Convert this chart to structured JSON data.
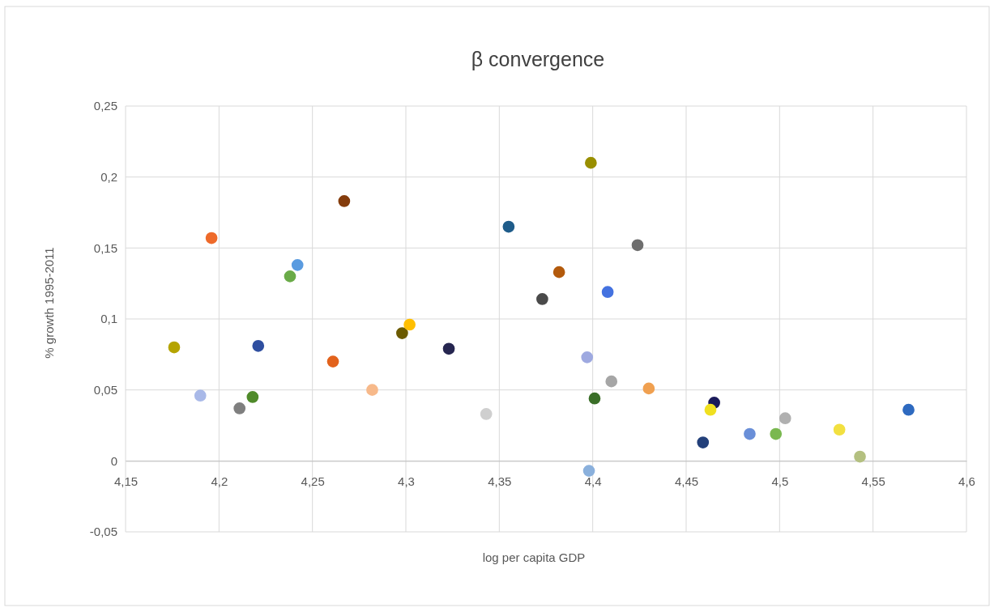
{
  "chart_data": {
    "type": "scatter",
    "title": "β convergence",
    "xlabel": "log per capita GDP",
    "ylabel": "% growth 1995-2011",
    "xlim": [
      4.15,
      4.6
    ],
    "xticks": [
      {
        "value": 4.15,
        "label": "4,15"
      },
      {
        "value": 4.2,
        "label": "4,2"
      },
      {
        "value": 4.25,
        "label": "4,25"
      },
      {
        "value": 4.3,
        "label": "4,3"
      },
      {
        "value": 4.35,
        "label": "4,35"
      },
      {
        "value": 4.4,
        "label": "4,4"
      },
      {
        "value": 4.45,
        "label": "4,45"
      },
      {
        "value": 4.5,
        "label": "4,5"
      },
      {
        "value": 4.55,
        "label": "4,55"
      },
      {
        "value": 4.6,
        "label": "4,6"
      }
    ],
    "ylim": [
      -0.05,
      0.25
    ],
    "yticks": [
      {
        "value": -0.05,
        "label": "-0,05"
      },
      0,
      {
        "value": 0.05,
        "label": "0,05"
      },
      {
        "value": 0.1,
        "label": "0,1"
      },
      {
        "value": 0.15,
        "label": "0,15"
      },
      {
        "value": 0.2,
        "label": "0,2"
      },
      {
        "value": 0.25,
        "label": "0,25"
      }
    ],
    "grid": true,
    "marker": "circle",
    "x": [
      4.176,
      4.19,
      4.196,
      4.211,
      4.218,
      4.221,
      4.238,
      4.242,
      4.261,
      4.267,
      4.282,
      4.298,
      4.302,
      4.323,
      4.343,
      4.355,
      4.373,
      4.382,
      4.397,
      4.399,
      4.398,
      4.401,
      4.408,
      4.41,
      4.424,
      4.43,
      4.459,
      4.465,
      4.463,
      4.484,
      4.498,
      4.503,
      4.532,
      4.543,
      4.569
    ],
    "values": [
      0.08,
      0.046,
      0.157,
      0.037,
      0.045,
      0.081,
      0.13,
      0.138,
      0.07,
      0.183,
      0.05,
      0.09,
      0.096,
      0.079,
      0.033,
      0.165,
      0.114,
      0.133,
      0.073,
      0.21,
      -0.007,
      0.044,
      0.119,
      0.056,
      0.152,
      0.051,
      0.013,
      0.041,
      0.036,
      0.019,
      0.019,
      0.03,
      0.022,
      0.003,
      0.036
    ],
    "colors": [
      "#b5a400",
      "#a9b9e8",
      "#ee6a2a",
      "#7f7f7f",
      "#4f8a2a",
      "#2f4fa0",
      "#6aab48",
      "#5a9be0",
      "#e2621c",
      "#843c0c",
      "#f7b98a",
      "#6b5a00",
      "#ffbf00",
      "#262650",
      "#cfcfcf",
      "#1f5c8a",
      "#4a4a4a",
      "#b35a0c",
      "#9ea9e0",
      "#998f00",
      "#8ab0dc",
      "#3a6e28",
      "#4472e0",
      "#a6a6a6",
      "#6e6e6e",
      "#f0a050",
      "#23407a",
      "#1a1a5a",
      "#f0e020",
      "#6a8fd8",
      "#7ab850",
      "#b0b0b0",
      "#f2e040",
      "#b4c080",
      "#2e6ac0"
    ]
  }
}
